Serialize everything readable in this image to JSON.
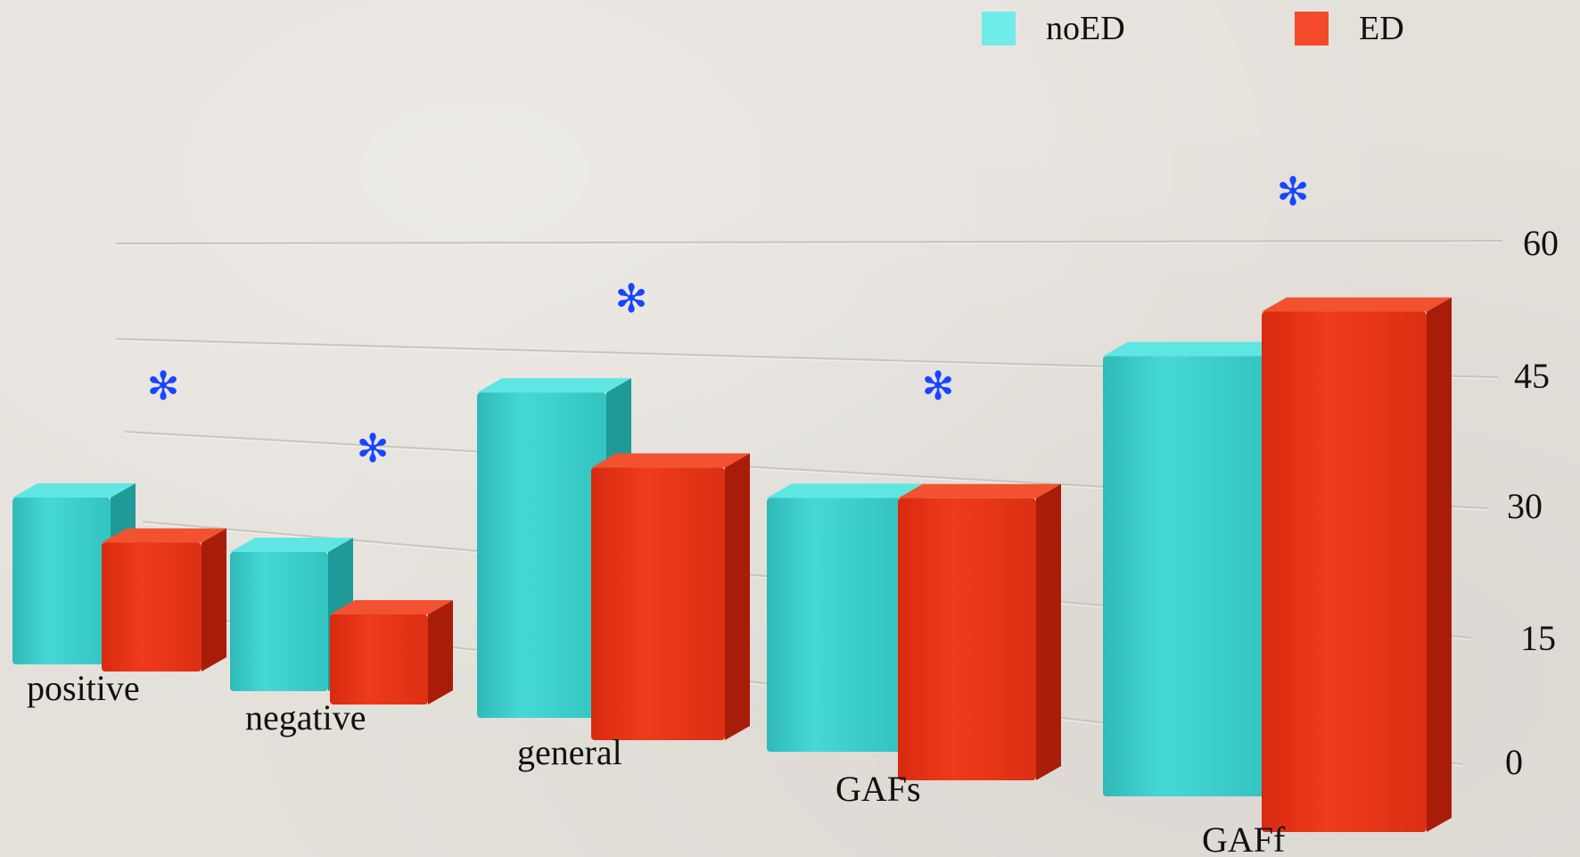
{
  "chart_data": {
    "type": "bar",
    "categories": [
      "positive",
      "negative",
      "general",
      "GAFs",
      "GAFf"
    ],
    "series": [
      {
        "name": "noED",
        "values": [
          22,
          17,
          37,
          27,
          44
        ]
      },
      {
        "name": "ED",
        "values": [
          17,
          11,
          31,
          30,
          52
        ]
      }
    ],
    "y_ticks": [
      "0",
      "15",
      "30",
      "45",
      "60"
    ],
    "ylim": [
      0,
      60
    ],
    "significance_marker": "✻",
    "significant": [
      true,
      true,
      true,
      true,
      true
    ],
    "legend_position": "top-right",
    "colors": {
      "noED": "#3cd2cf",
      "ED": "#e8341a",
      "marker": "#1846ff"
    }
  }
}
